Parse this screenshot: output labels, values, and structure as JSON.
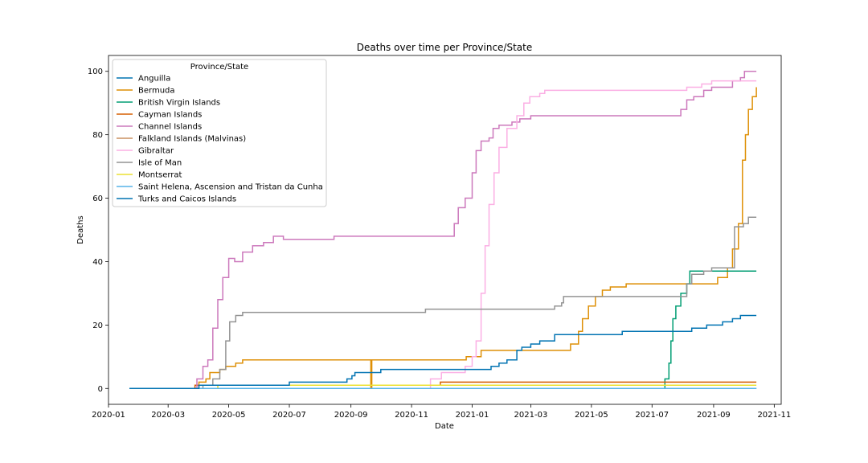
{
  "chart_data": {
    "type": "line",
    "title": "Deaths over time per Province/State",
    "xlabel": "Date",
    "ylabel": "Deaths",
    "x_ticks": [
      "2020-01",
      "2020-03",
      "2020-05",
      "2020-07",
      "2020-09",
      "2020-11",
      "2021-01",
      "2021-03",
      "2021-05",
      "2021-07",
      "2021-09",
      "2021-11"
    ],
    "y_ticks": [
      0,
      20,
      40,
      60,
      80,
      100
    ],
    "xlim": [
      "2020-01-01",
      "2021-11-08"
    ],
    "ylim": [
      -5,
      105
    ],
    "grid": false,
    "legend": {
      "title": "Province/State",
      "placement": "top-left"
    },
    "series": [
      {
        "name": "Anguilla",
        "color": "#0173b2",
        "points": [
          [
            "2020-01-22",
            0
          ],
          [
            "2021-10-14",
            0
          ]
        ]
      },
      {
        "name": "Bermuda",
        "color": "#de8f05",
        "points": [
          [
            "2020-01-22",
            0
          ],
          [
            "2020-03-20",
            0
          ],
          [
            "2020-04-01",
            2
          ],
          [
            "2020-04-08",
            3
          ],
          [
            "2020-04-12",
            5
          ],
          [
            "2020-04-22",
            6
          ],
          [
            "2020-04-28",
            7
          ],
          [
            "2020-05-08",
            8
          ],
          [
            "2020-05-15",
            9
          ],
          [
            "2020-09-20",
            9
          ],
          [
            "2020-09-21",
            0
          ],
          [
            "2020-09-22",
            9
          ],
          [
            "2020-12-25",
            9
          ],
          [
            "2020-12-26",
            10
          ],
          [
            "2021-01-10",
            12
          ],
          [
            "2021-04-05",
            12
          ],
          [
            "2021-04-10",
            14
          ],
          [
            "2021-04-18",
            18
          ],
          [
            "2021-04-22",
            22
          ],
          [
            "2021-04-28",
            26
          ],
          [
            "2021-05-05",
            29
          ],
          [
            "2021-05-12",
            31
          ],
          [
            "2021-05-20",
            32
          ],
          [
            "2021-06-05",
            33
          ],
          [
            "2021-08-28",
            33
          ],
          [
            "2021-09-05",
            35
          ],
          [
            "2021-09-15",
            38
          ],
          [
            "2021-09-20",
            44
          ],
          [
            "2021-09-26",
            52
          ],
          [
            "2021-09-30",
            72
          ],
          [
            "2021-10-03",
            80
          ],
          [
            "2021-10-06",
            88
          ],
          [
            "2021-10-10",
            92
          ],
          [
            "2021-10-14",
            95
          ]
        ]
      },
      {
        "name": "British Virgin Islands",
        "color": "#029e73",
        "points": [
          [
            "2020-01-22",
            0
          ],
          [
            "2021-07-12",
            0
          ],
          [
            "2021-07-14",
            3
          ],
          [
            "2021-07-18",
            8
          ],
          [
            "2021-07-20",
            15
          ],
          [
            "2021-07-22",
            22
          ],
          [
            "2021-07-25",
            26
          ],
          [
            "2021-07-30",
            30
          ],
          [
            "2021-08-05",
            33
          ],
          [
            "2021-08-08",
            37
          ],
          [
            "2021-10-14",
            37
          ]
        ]
      },
      {
        "name": "Cayman Islands",
        "color": "#d55e00",
        "points": [
          [
            "2020-01-22",
            0
          ],
          [
            "2020-03-28",
            1
          ],
          [
            "2020-11-28",
            1
          ],
          [
            "2020-11-30",
            2
          ],
          [
            "2021-10-14",
            2
          ]
        ]
      },
      {
        "name": "Channel Islands",
        "color": "#cc78bc",
        "points": [
          [
            "2020-01-22",
            0
          ],
          [
            "2020-03-25",
            0
          ],
          [
            "2020-03-30",
            3
          ],
          [
            "2020-04-05",
            7
          ],
          [
            "2020-04-10",
            9
          ],
          [
            "2020-04-15",
            19
          ],
          [
            "2020-04-20",
            28
          ],
          [
            "2020-04-25",
            35
          ],
          [
            "2020-05-01",
            41
          ],
          [
            "2020-05-07",
            40
          ],
          [
            "2020-05-15",
            43
          ],
          [
            "2020-05-25",
            45
          ],
          [
            "2020-06-05",
            46
          ],
          [
            "2020-06-15",
            48
          ],
          [
            "2020-06-25",
            47
          ],
          [
            "2020-08-15",
            48
          ],
          [
            "2020-12-10",
            48
          ],
          [
            "2020-12-14",
            52
          ],
          [
            "2020-12-18",
            57
          ],
          [
            "2020-12-25",
            60
          ],
          [
            "2021-01-01",
            68
          ],
          [
            "2021-01-05",
            75
          ],
          [
            "2021-01-10",
            78
          ],
          [
            "2021-01-18",
            79
          ],
          [
            "2021-01-22",
            82
          ],
          [
            "2021-01-28",
            83
          ],
          [
            "2021-02-10",
            84
          ],
          [
            "2021-02-18",
            85
          ],
          [
            "2021-03-01",
            86
          ],
          [
            "2021-07-25",
            86
          ],
          [
            "2021-07-30",
            88
          ],
          [
            "2021-08-05",
            91
          ],
          [
            "2021-08-12",
            92
          ],
          [
            "2021-08-22",
            94
          ],
          [
            "2021-08-30",
            95
          ],
          [
            "2021-09-20",
            97
          ],
          [
            "2021-09-28",
            98
          ],
          [
            "2021-10-02",
            100
          ],
          [
            "2021-10-14",
            100
          ]
        ]
      },
      {
        "name": "Falkland Islands (Malvinas)",
        "color": "#ca9161",
        "points": [
          [
            "2020-01-22",
            0
          ],
          [
            "2021-10-14",
            0
          ]
        ]
      },
      {
        "name": "Gibraltar",
        "color": "#fbafe4",
        "points": [
          [
            "2020-01-22",
            0
          ],
          [
            "2020-11-10",
            0
          ],
          [
            "2020-11-20",
            3
          ],
          [
            "2020-12-01",
            5
          ],
          [
            "2020-12-25",
            7
          ],
          [
            "2021-01-01",
            10
          ],
          [
            "2021-01-05",
            15
          ],
          [
            "2021-01-10",
            30
          ],
          [
            "2021-01-14",
            45
          ],
          [
            "2021-01-18",
            58
          ],
          [
            "2021-01-23",
            68
          ],
          [
            "2021-01-28",
            76
          ],
          [
            "2021-02-05",
            82
          ],
          [
            "2021-02-15",
            86
          ],
          [
            "2021-02-22",
            90
          ],
          [
            "2021-02-28",
            92
          ],
          [
            "2021-03-10",
            93
          ],
          [
            "2021-03-15",
            94
          ],
          [
            "2021-07-25",
            94
          ],
          [
            "2021-08-05",
            95
          ],
          [
            "2021-08-20",
            96
          ],
          [
            "2021-08-30",
            97
          ],
          [
            "2021-10-14",
            97
          ]
        ]
      },
      {
        "name": "Isle of Man",
        "color": "#949494",
        "points": [
          [
            "2020-01-22",
            0
          ],
          [
            "2020-03-28",
            0
          ],
          [
            "2020-04-05",
            1
          ],
          [
            "2020-04-15",
            3
          ],
          [
            "2020-04-22",
            6
          ],
          [
            "2020-04-28",
            15
          ],
          [
            "2020-05-02",
            21
          ],
          [
            "2020-05-08",
            23
          ],
          [
            "2020-05-15",
            24
          ],
          [
            "2020-11-10",
            24
          ],
          [
            "2020-11-15",
            25
          ],
          [
            "2021-03-20",
            25
          ],
          [
            "2021-03-25",
            26
          ],
          [
            "2021-04-01",
            27
          ],
          [
            "2021-04-03",
            29
          ],
          [
            "2021-07-30",
            29
          ],
          [
            "2021-08-05",
            33
          ],
          [
            "2021-08-10",
            36
          ],
          [
            "2021-08-22",
            37
          ],
          [
            "2021-08-30",
            38
          ],
          [
            "2021-09-20",
            38
          ],
          [
            "2021-09-22",
            51
          ],
          [
            "2021-10-01",
            52
          ],
          [
            "2021-10-06",
            54
          ],
          [
            "2021-10-14",
            54
          ]
        ]
      },
      {
        "name": "Montserrat",
        "color": "#ece133",
        "points": [
          [
            "2020-01-22",
            0
          ],
          [
            "2020-04-18",
            0
          ],
          [
            "2020-04-20",
            1
          ],
          [
            "2021-10-14",
            1
          ]
        ]
      },
      {
        "name": "Saint Helena, Ascension and Tristan da Cunha",
        "color": "#56b4e9",
        "points": [
          [
            "2020-01-22",
            0
          ],
          [
            "2021-10-14",
            0
          ]
        ]
      },
      {
        "name": "Turks and Caicos Islands",
        "color": "#0173b2",
        "points": [
          [
            "2020-01-22",
            0
          ],
          [
            "2020-03-20",
            0
          ],
          [
            "2020-04-01",
            1
          ],
          [
            "2020-06-30",
            1
          ],
          [
            "2020-07-01",
            2
          ],
          [
            "2020-08-20",
            2
          ],
          [
            "2020-08-28",
            3
          ],
          [
            "2020-09-02",
            4
          ],
          [
            "2020-09-05",
            5
          ],
          [
            "2020-09-25",
            5
          ],
          [
            "2020-10-01",
            6
          ],
          [
            "2021-01-01",
            6
          ],
          [
            "2021-01-20",
            7
          ],
          [
            "2021-01-28",
            8
          ],
          [
            "2021-02-05",
            9
          ],
          [
            "2021-02-15",
            12
          ],
          [
            "2021-02-20",
            13
          ],
          [
            "2021-03-01",
            14
          ],
          [
            "2021-03-10",
            15
          ],
          [
            "2021-03-25",
            17
          ],
          [
            "2021-05-25",
            17
          ],
          [
            "2021-06-01",
            18
          ],
          [
            "2021-08-01",
            18
          ],
          [
            "2021-08-10",
            19
          ],
          [
            "2021-08-25",
            20
          ],
          [
            "2021-09-10",
            21
          ],
          [
            "2021-09-20",
            22
          ],
          [
            "2021-09-28",
            23
          ],
          [
            "2021-10-14",
            23
          ]
        ]
      }
    ]
  }
}
